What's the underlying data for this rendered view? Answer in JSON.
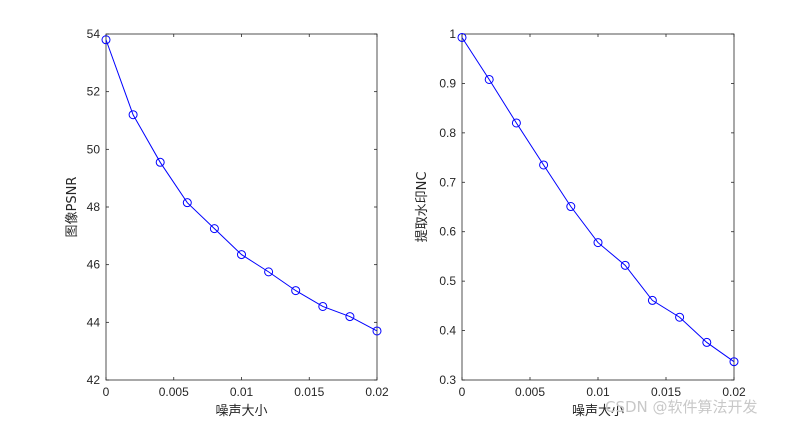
{
  "watermark": "CSDN @软件算法开发",
  "chart_data": [
    {
      "type": "line",
      "xlabel": "噪声大小",
      "ylabel": "图像PSNR",
      "xlim": [
        0,
        0.02
      ],
      "ylim": [
        42,
        54
      ],
      "xticks": [
        "0",
        "0.005",
        "0.01",
        "0.015",
        "0.02"
      ],
      "yticks": [
        "42",
        "44",
        "46",
        "48",
        "50",
        "52",
        "54"
      ],
      "grid": false,
      "color": "#0000ff",
      "marker": "circle",
      "x": [
        0,
        0.002,
        0.004,
        0.006,
        0.008,
        0.01,
        0.012,
        0.014,
        0.016,
        0.018,
        0.02
      ],
      "y": [
        53.8,
        51.2,
        49.55,
        48.15,
        47.25,
        46.35,
        45.75,
        45.1,
        44.55,
        44.2,
        43.7
      ]
    },
    {
      "type": "line",
      "xlabel": "噪声大小",
      "ylabel": "提取水印NC",
      "xlim": [
        0,
        0.02
      ],
      "ylim": [
        0.3,
        1
      ],
      "xticks": [
        "0",
        "0.005",
        "0.01",
        "0.015",
        "0.02"
      ],
      "yticks": [
        "0.3",
        "0.4",
        "0.5",
        "0.6",
        "0.7",
        "0.8",
        "0.9",
        "1"
      ],
      "grid": false,
      "color": "#0000ff",
      "marker": "circle",
      "x": [
        0,
        0.002,
        0.004,
        0.006,
        0.008,
        0.01,
        0.012,
        0.014,
        0.016,
        0.018,
        0.02
      ],
      "y": [
        0.993,
        0.908,
        0.82,
        0.735,
        0.651,
        0.578,
        0.532,
        0.461,
        0.427,
        0.376,
        0.337
      ]
    }
  ]
}
